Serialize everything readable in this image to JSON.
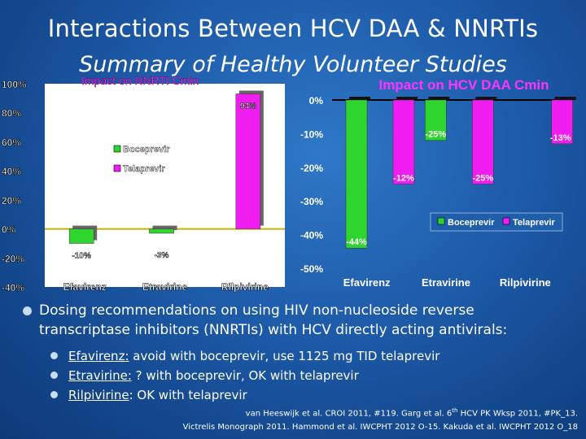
{
  "slide": {
    "title": "Interactions Between HCV DAA & NNRTIs",
    "subtitle": "Summary of Healthy Volunteer Studies"
  },
  "chart_data": [
    {
      "type": "bar",
      "title": "Impact on NNRTI Cmin",
      "categories": [
        "Efavirenz",
        "Etravirine",
        "Rilpivirine"
      ],
      "series": [
        {
          "name": "Boceprevir",
          "color": "#2fd52f",
          "values": [
            -10,
            -3,
            null
          ]
        },
        {
          "name": "Telaprevir",
          "color": "#f01df0",
          "values": [
            null,
            null,
            93
          ]
        }
      ],
      "data_labels": [
        "-10%",
        "-3%",
        "93%"
      ],
      "y_tick_labels": [
        "100%",
        "80%",
        "60%",
        "40%",
        "20%",
        "0%",
        "-20%",
        "-40%"
      ],
      "ylim": [
        -40,
        100
      ],
      "legend_position": "left-center",
      "background": "#ffffff"
    },
    {
      "type": "bar",
      "title": "Impact on HCV DAA Cmin",
      "categories": [
        "Efavirenz",
        "Etravirine",
        "Rilpivirine"
      ],
      "series": [
        {
          "name": "Boceprevir",
          "color": "#2fd52f",
          "values": [
            -44,
            -12,
            null
          ]
        },
        {
          "name": "Telaprevir",
          "color": "#f01df0",
          "values": [
            -25,
            -25,
            -13
          ]
        }
      ],
      "data_labels": [
        "-44%",
        "-25%",
        "-12%",
        "-25%",
        "-13%"
      ],
      "y_tick_labels": [
        "0%",
        "-10%",
        "-20%",
        "-30%",
        "-40%",
        "-50%"
      ],
      "ylim": [
        -50,
        0
      ],
      "legend_position": "bottom-right"
    }
  ],
  "bullets": {
    "main_line1": "Dosing recommendations on using HIV non-nucleoside reverse",
    "main_line2": "transcriptase inhibitors (NNRTIs) with HCV directly acting antivirals:",
    "items": [
      {
        "drug": "Efavirenz:",
        "text": " avoid with boceprevir, use 1125 mg TID telaprevir"
      },
      {
        "drug": "Etravirine:",
        "text": " ? with boceprevir, OK with telaprevir"
      },
      {
        "drug": "Rilpivirine",
        "text": ":  OK with telaprevir"
      }
    ]
  },
  "references": {
    "line1_a": "van Heeswijk et al. CROI 2011, #119. Garg et al. 6",
    "line1_sup": "th",
    "line1_b": " HCV PK Wksp 2011, #PK_13.",
    "line2": "Victrelis Monograph 2011. Hammond et al. IWCPHT 2012 O-15. Kakuda et al. IWCPHT 2012 O_18"
  }
}
